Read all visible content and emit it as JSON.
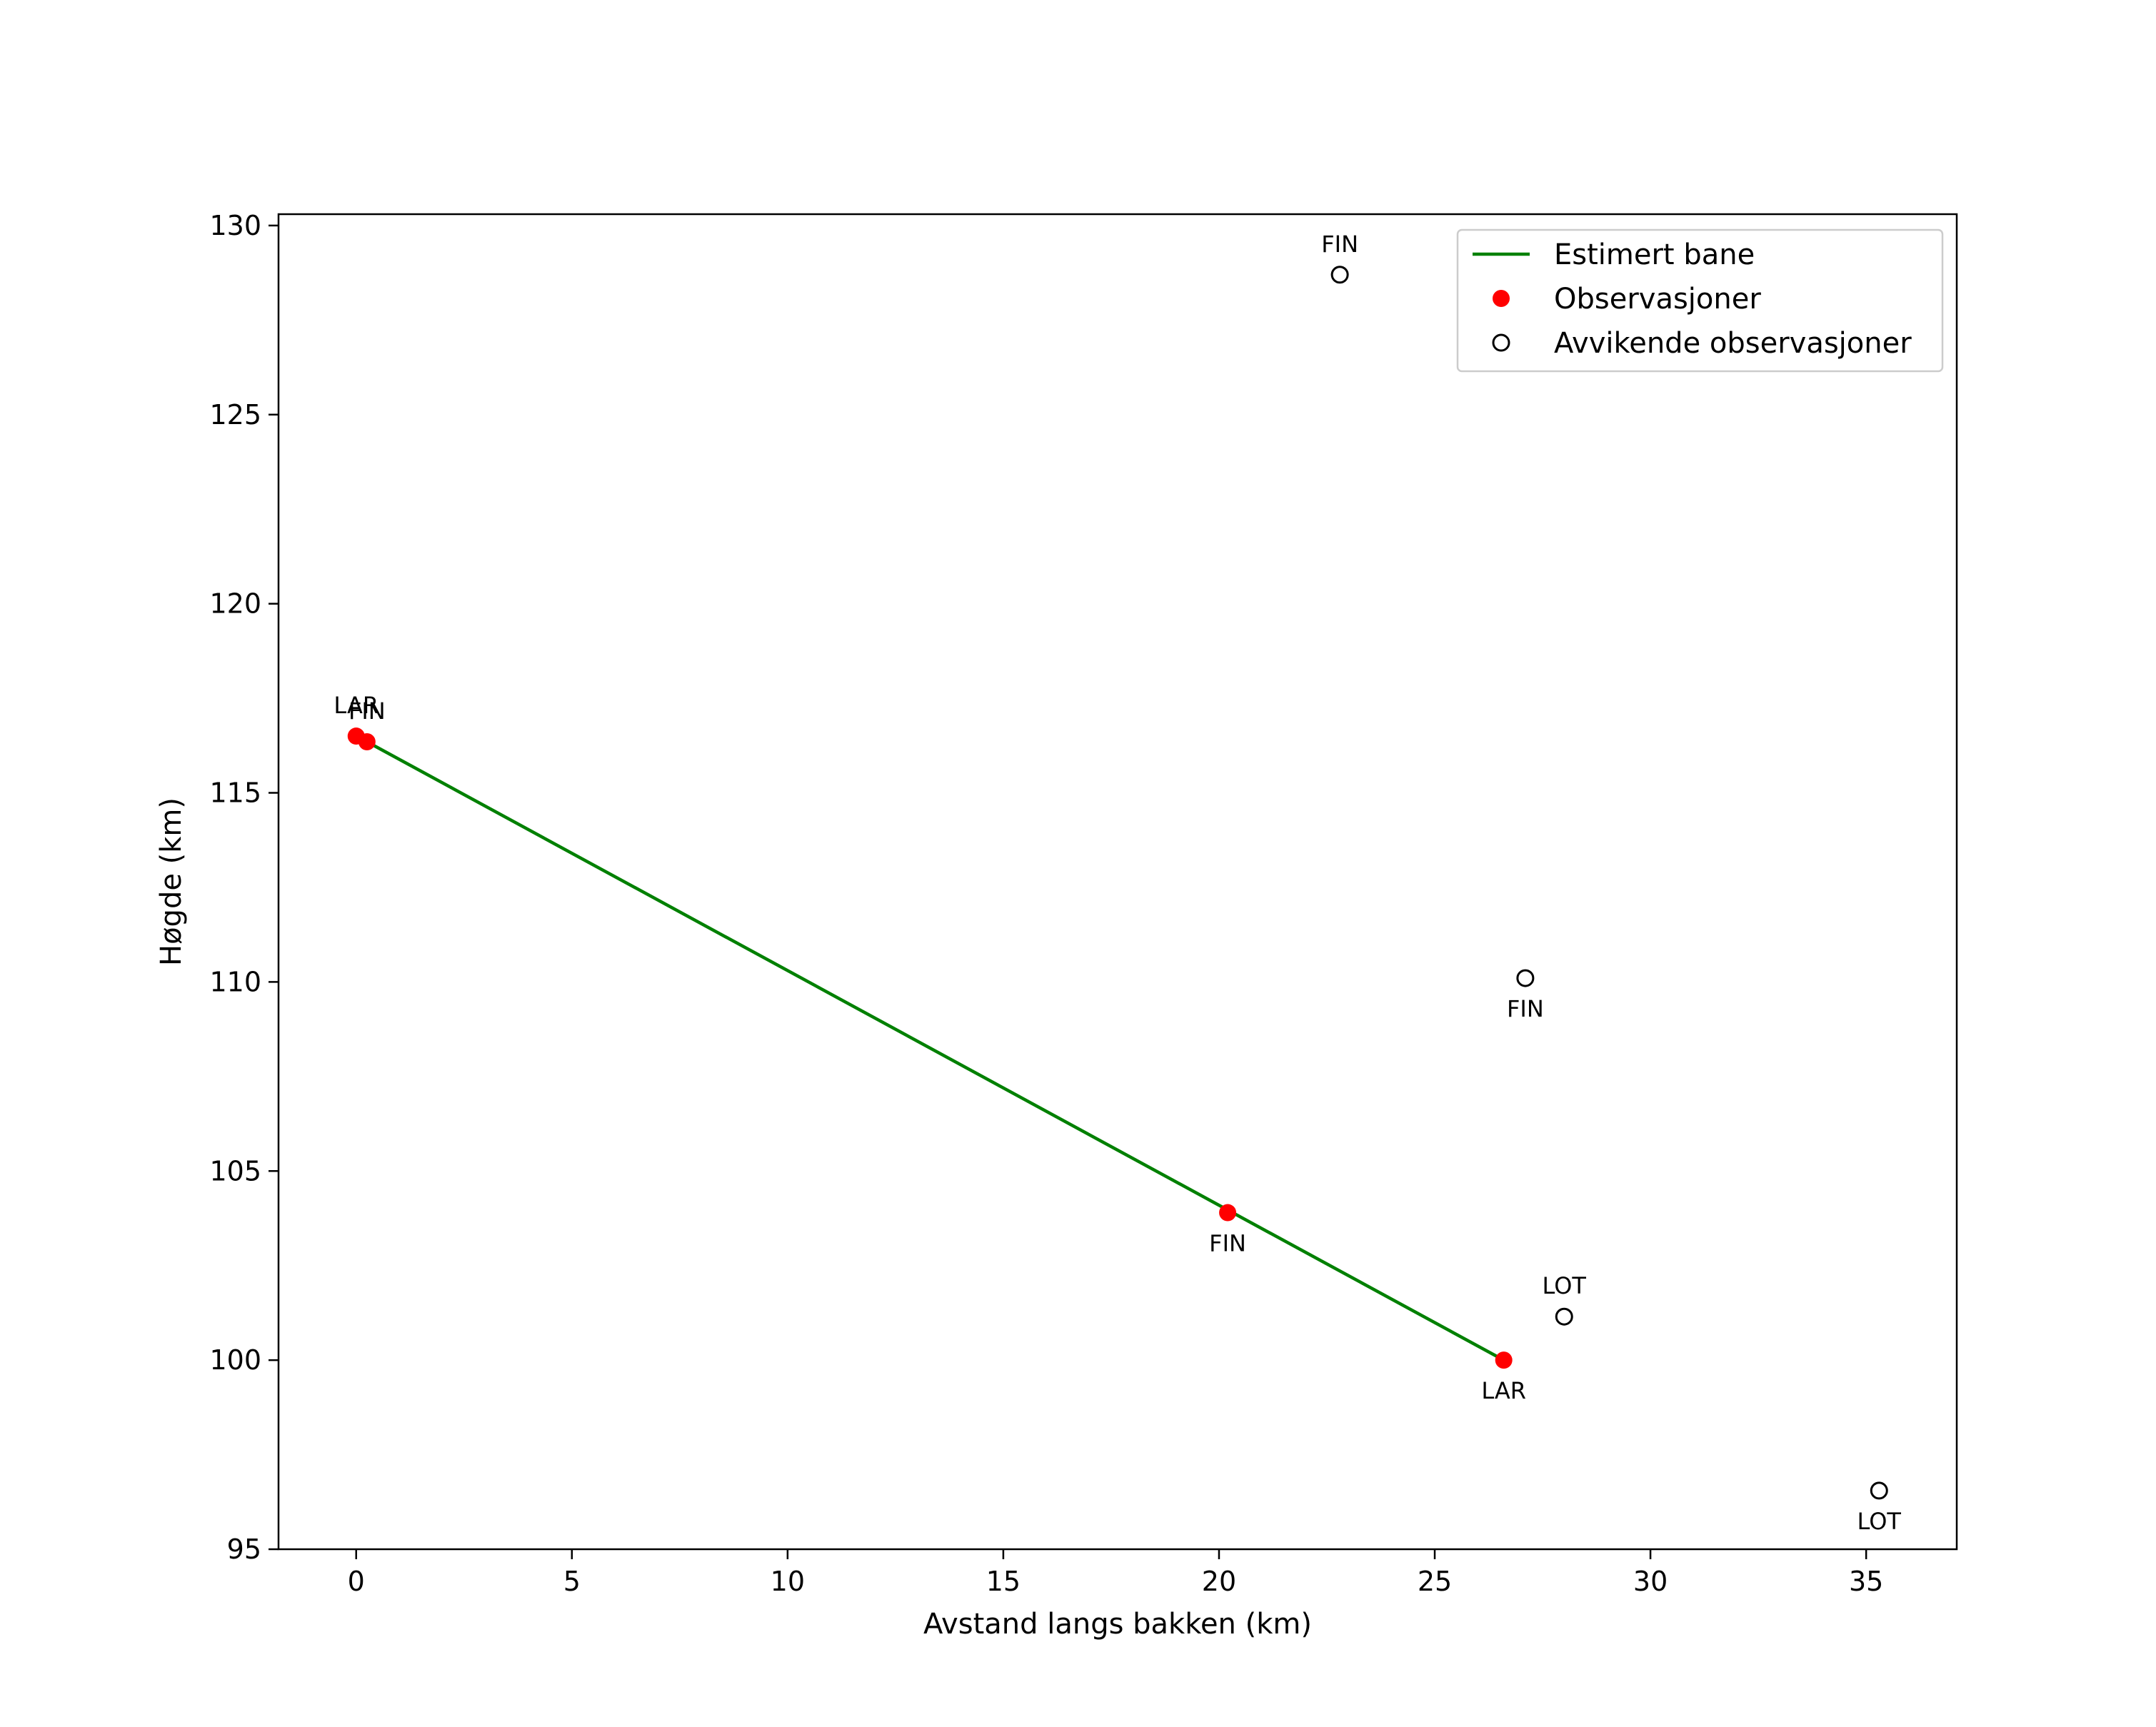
{
  "chart_data": {
    "type": "scatter",
    "title": "",
    "xlabel": "Avstand langs bakken (km)",
    "ylabel": "Høgde (km)",
    "xlim": [
      -1.8,
      37.1
    ],
    "ylim": [
      95.0,
      130.3
    ],
    "xticks": [
      0,
      5,
      10,
      15,
      20,
      25,
      30,
      35
    ],
    "yticks": [
      95,
      100,
      105,
      110,
      115,
      120,
      125,
      130
    ],
    "grid": false,
    "legend_position": "top-right",
    "colors": {
      "line": "#008000",
      "observed": "#ff0000",
      "outlier_edge": "#000000"
    },
    "series": [
      {
        "name": "Estimert bane",
        "kind": "line",
        "points": [
          {
            "x": 0.25,
            "y": 116.35
          },
          {
            "x": 26.6,
            "y": 100.0
          }
        ]
      },
      {
        "name": "Observasjoner",
        "kind": "filled-marker",
        "points": [
          {
            "x": 0.0,
            "y": 116.5,
            "label": "LAR",
            "label_pos": "above"
          },
          {
            "x": 0.25,
            "y": 116.35,
            "label": "FIN",
            "label_pos": "above"
          },
          {
            "x": 20.2,
            "y": 103.9,
            "label": "FIN",
            "label_pos": "below"
          },
          {
            "x": 26.6,
            "y": 100.0,
            "label": "LAR",
            "label_pos": "below"
          }
        ]
      },
      {
        "name": "Avvikende observasjoner",
        "kind": "hollow-marker",
        "points": [
          {
            "x": 22.8,
            "y": 128.7,
            "label": "FIN",
            "label_pos": "above"
          },
          {
            "x": 27.1,
            "y": 110.1,
            "label": "FIN",
            "label_pos": "below"
          },
          {
            "x": 28.0,
            "y": 101.15,
            "label": "LOT",
            "label_pos": "above"
          },
          {
            "x": 35.3,
            "y": 96.55,
            "label": "LOT",
            "label_pos": "below"
          }
        ]
      }
    ]
  }
}
